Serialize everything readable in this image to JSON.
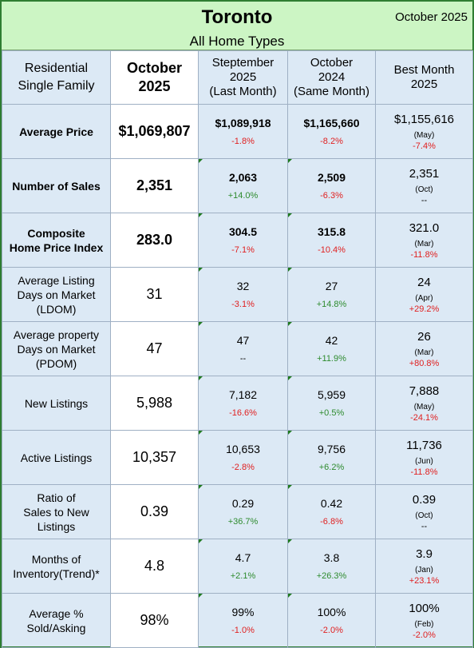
{
  "header": {
    "title": "Toronto",
    "subtitle": "All Home Types",
    "period": "October 2025"
  },
  "columns": {
    "metric_line1": "Residential",
    "metric_line2": "Single Family",
    "current_line1": "October",
    "current_line2": "2025",
    "last_month_line1": "Steptember",
    "last_month_line2": "2025",
    "last_month_line3": "(Last Month)",
    "same_month_line1": "October",
    "same_month_line2": "2024",
    "same_month_line3": "(Same Month)",
    "best_line1": "Best Month",
    "best_line2": "2025"
  },
  "rows": [
    {
      "label1": "Average Price",
      "label2": "",
      "label3": "",
      "current": "$1,069,807",
      "last_value": "$1,089,918",
      "last_change": "-1.8%",
      "prev_value": "$1,165,660",
      "prev_change": "-8.2%",
      "best_value": "$1,155,616",
      "best_month": "(May)",
      "best_change": "-7.4%"
    },
    {
      "label1": "Number of Sales",
      "label2": "",
      "label3": "",
      "current": "2,351",
      "last_value": "2,063",
      "last_change": "+14.0%",
      "prev_value": "2,509",
      "prev_change": "-6.3%",
      "best_value": "2,351",
      "best_month": "(Oct)",
      "best_change": "--"
    },
    {
      "label1": "Composite",
      "label2": "Home Price Index",
      "label3": "",
      "current": "283.0",
      "last_value": "304.5",
      "last_change": "-7.1%",
      "prev_value": "315.8",
      "prev_change": "-10.4%",
      "best_value": "321.0",
      "best_month": "(Mar)",
      "best_change": "-11.8%"
    },
    {
      "label1": "Average Listing",
      "label2": "Days on Market",
      "label3": "(LDOM)",
      "current": "31",
      "last_value": "32",
      "last_change": "-3.1%",
      "prev_value": "27",
      "prev_change": "+14.8%",
      "best_value": "24",
      "best_month": "(Apr)",
      "best_change": "+29.2%"
    },
    {
      "label1": "Average property",
      "label2": "Days on Market",
      "label3": "(PDOM)",
      "current": "47",
      "last_value": "47",
      "last_change": "--",
      "prev_value": "42",
      "prev_change": "+11.9%",
      "best_value": "26",
      "best_month": "(Mar)",
      "best_change": "+80.8%"
    },
    {
      "label1": "New Listings",
      "label2": "",
      "label3": "",
      "current": "5,988",
      "last_value": "7,182",
      "last_change": "-16.6%",
      "prev_value": "5,959",
      "prev_change": "+0.5%",
      "best_value": "7,888",
      "best_month": "(May)",
      "best_change": "-24.1%"
    },
    {
      "label1": "Active Listings",
      "label2": "",
      "label3": "",
      "current": "10,357",
      "last_value": "10,653",
      "last_change": "-2.8%",
      "prev_value": "9,756",
      "prev_change": "+6.2%",
      "best_value": "11,736",
      "best_month": "(Jun)",
      "best_change": "-11.8%"
    },
    {
      "label1": "Ratio of",
      "label2": "Sales to New",
      "label3": "Listings",
      "current": "0.39",
      "last_value": "0.29",
      "last_change": "+36.7%",
      "prev_value": "0.42",
      "prev_change": "-6.8%",
      "best_value": "0.39",
      "best_month": "(Oct)",
      "best_change": "--"
    },
    {
      "label1": "Months of",
      "label2": "Inventory(Trend)*",
      "label3": "",
      "current": "4.8",
      "last_value": "4.7",
      "last_change": "+2.1%",
      "prev_value": "3.8",
      "prev_change": "+26.3%",
      "best_value": "3.9",
      "best_month": "(Jan)",
      "best_change": "+23.1%"
    },
    {
      "label1": "Average %",
      "label2": "Sold/Asking",
      "label3": "",
      "current": "98%",
      "last_value": "99%",
      "last_change": "-1.0%",
      "prev_value": "100%",
      "prev_change": "-2.0%",
      "best_value": "100%",
      "best_month": "(Feb)",
      "best_change": "-2.0%"
    }
  ],
  "colors": {
    "header_bg": "#ccf5c4",
    "table_bg": "#dce9f5",
    "current_bg": "#ffffff",
    "border": "#2e7d32",
    "negative": "#e02020",
    "positive": "#2e8b2e"
  }
}
